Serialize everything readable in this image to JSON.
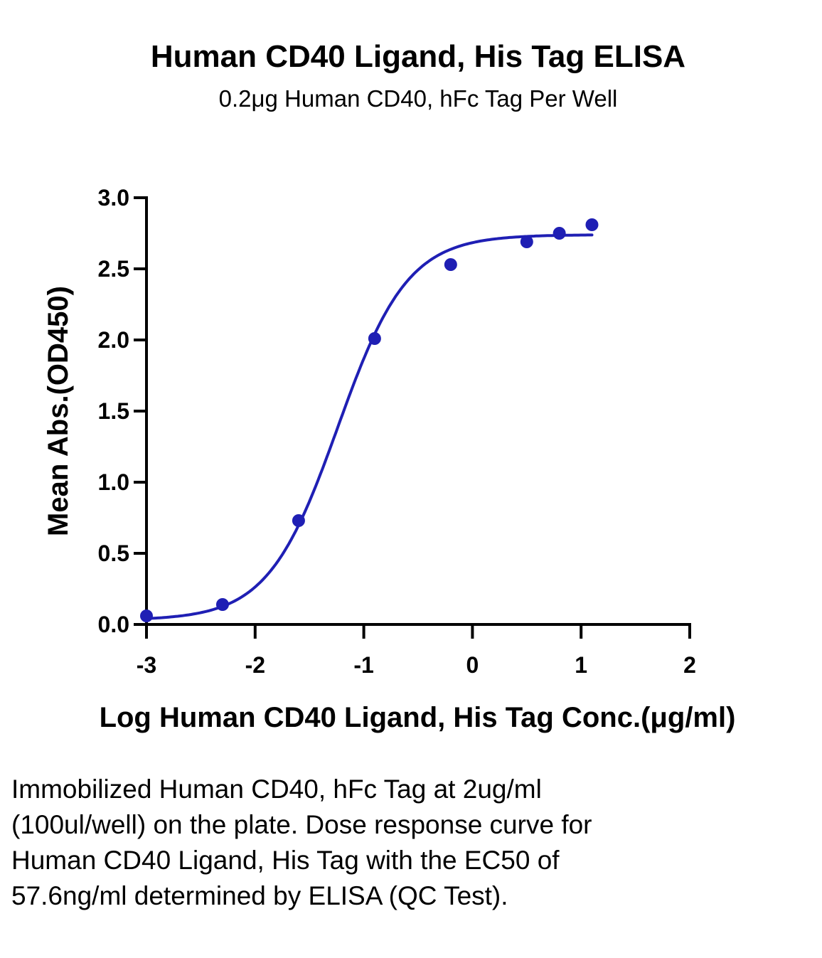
{
  "chart_data": {
    "type": "scatter",
    "title": "Human CD40 Ligand, His Tag ELISA",
    "subtitle": "0.2μg Human CD40, hFc Tag Per Well",
    "xlabel": "Log Human CD40 Ligand, His Tag Conc.(μg/ml)",
    "ylabel": "Mean Abs.(OD450)",
    "xlim": [
      -3,
      2
    ],
    "ylim": [
      0,
      3
    ],
    "x_ticks": [
      -3,
      -2,
      -1,
      0,
      1,
      2
    ],
    "x_tick_labels": [
      "-3",
      "-2",
      "-1",
      "0",
      "1",
      "2"
    ],
    "y_ticks": [
      0,
      0.5,
      1,
      1.5,
      2,
      2.5,
      3
    ],
    "y_tick_labels": [
      "0.0",
      "0.5",
      "1.0",
      "1.5",
      "2.0",
      "2.5",
      "3.0"
    ],
    "grid": false,
    "color": "#1f1fb4",
    "series": [
      {
        "x": [
          -3.0,
          -2.3,
          -1.6,
          -0.9,
          -0.2,
          0.5,
          0.8,
          1.1
        ],
        "y": [
          0.06,
          0.14,
          0.73,
          2.01,
          2.53,
          2.69,
          2.75,
          2.81
        ]
      }
    ],
    "fit": {
      "model": "4PL",
      "bottom": 0.03,
      "top": 2.74,
      "log_ec50": -1.24,
      "hill": 1.35,
      "x_range": [
        -3.0,
        1.1
      ]
    }
  },
  "caption": "Immobilized Human CD40, hFc Tag at 2ug/ml (100ul/well) on the plate. Dose response curve for Human CD40 Ligand, His Tag with the EC50 of 57.6ng/ml determined by ELISA (QC Test)."
}
